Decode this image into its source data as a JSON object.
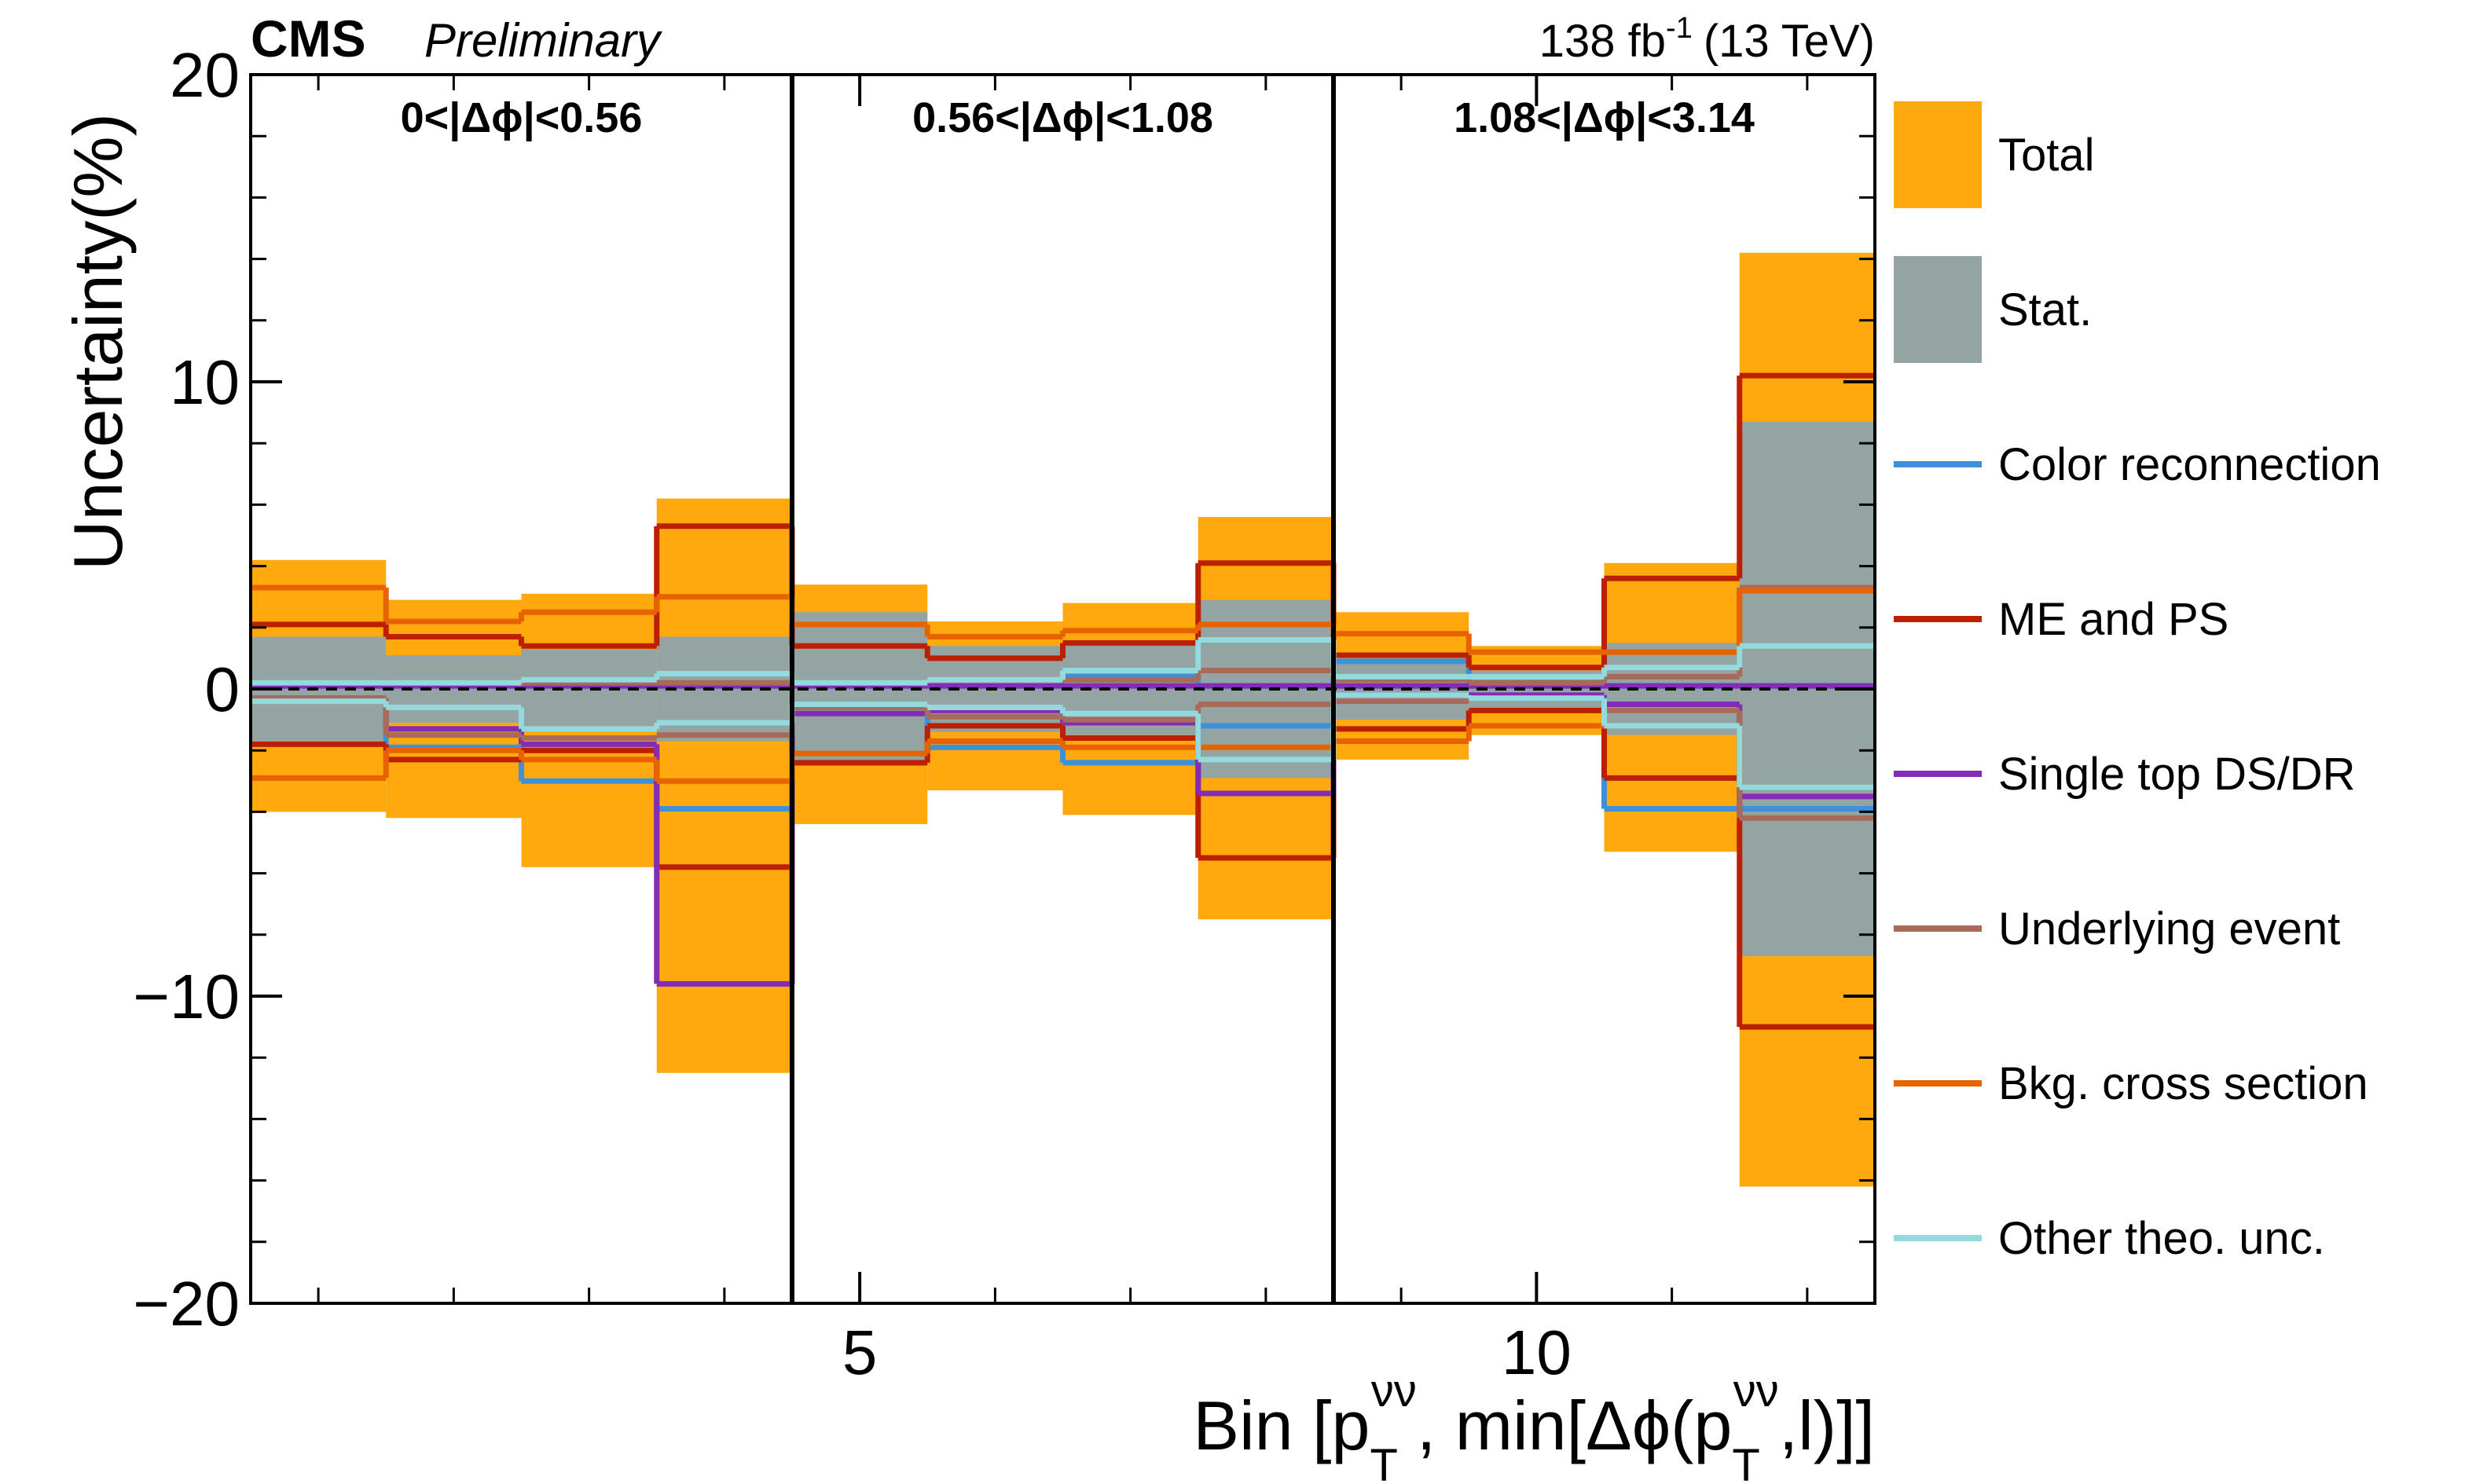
{
  "chart_data": {
    "type": "step",
    "experiment": "CMS",
    "status": "Preliminary",
    "lumi": {
      "main": "138 fb",
      "sup": "-1",
      "energy": "(13 TeV)"
    },
    "y_label": "Uncertainty(%)",
    "x_label_parts": [
      "Bin [p",
      "T",
      "νν",
      ", min[Δϕ(p",
      "T",
      "νν",
      ",l)]]"
    ],
    "xlim": [
      0.5,
      12.5
    ],
    "xticks": [
      5,
      10
    ],
    "xminorticks": [
      1,
      2,
      3,
      4,
      5,
      6,
      7,
      8,
      9,
      10,
      11,
      12
    ],
    "ylim": [
      -20,
      20
    ],
    "yticks": [
      {
        "value": -20,
        "label": "−20"
      },
      {
        "value": -10,
        "label": "−10"
      },
      0,
      10,
      20
    ],
    "yminorticks": [
      -18,
      -16,
      -14,
      -12,
      -8,
      -6,
      -4,
      -2,
      2,
      4,
      6,
      8,
      12,
      14,
      16,
      18
    ],
    "hline": 0,
    "dividers": [
      4.5,
      8.5
    ],
    "regions": [
      {
        "label": "0<|Δϕ|<0.56",
        "range": [
          0.5,
          4.5
        ]
      },
      {
        "label": "0.56<|Δϕ|<1.08",
        "range": [
          4.5,
          8.5
        ]
      },
      {
        "label": "1.08<|Δϕ|<3.14",
        "range": [
          8.5,
          12.5
        ]
      }
    ],
    "bins": [
      0.5,
      1.5,
      2.5,
      3.5,
      4.5,
      5.5,
      6.5,
      7.5,
      8.5,
      9.5,
      10.5,
      11.5,
      12.5
    ],
    "bands": [
      {
        "name": "Total",
        "color": "#ffa90e",
        "up": [
          4.2,
          2.9,
          3.1,
          6.2,
          3.4,
          2.2,
          2.8,
          5.6,
          2.5,
          1.4,
          4.1,
          14.2
        ],
        "down": [
          -4.0,
          -4.2,
          -5.8,
          -12.5,
          -4.4,
          -3.3,
          -4.1,
          -7.5,
          -2.3,
          -1.5,
          -5.3,
          -16.2
        ]
      },
      {
        "name": "Stat.",
        "color": "#94a4a2",
        "up": [
          1.7,
          1.1,
          1.3,
          1.7,
          2.5,
          1.4,
          1.5,
          2.9,
          1.0,
          0.6,
          1.5,
          8.7
        ],
        "down": [
          -1.7,
          -1.1,
          -1.3,
          -1.7,
          -2.5,
          -1.4,
          -1.5,
          -2.9,
          -1.0,
          -0.6,
          -1.5,
          -8.7
        ]
      }
    ],
    "series": [
      {
        "name": "Color reconnection",
        "color": "#3f90da",
        "up": [
          0.1,
          0.1,
          0.1,
          0.1,
          0.1,
          0.1,
          0.4,
          0.1,
          0.9,
          0.1,
          0.1,
          0.1
        ],
        "down": [
          -0.3,
          -1.9,
          -3.0,
          -3.9,
          -0.5,
          -1.9,
          -2.4,
          -1.2,
          -0.2,
          -0.3,
          -3.9,
          -3.9
        ]
      },
      {
        "name": "ME and PS",
        "color": "#bd1f01",
        "up": [
          2.1,
          1.7,
          1.4,
          5.3,
          1.4,
          1.0,
          1.5,
          4.1,
          1.1,
          0.7,
          3.6,
          10.2
        ],
        "down": [
          -1.8,
          -2.3,
          -2.0,
          -5.8,
          -2.4,
          -1.2,
          -1.6,
          -5.5,
          -1.3,
          -0.7,
          -2.9,
          -11.0
        ]
      },
      {
        "name": "Single top DS/DR",
        "color": "#832db6",
        "up": [
          0.1,
          0.1,
          0.1,
          0.1,
          0.1,
          0.1,
          0.1,
          0.1,
          0.1,
          0.1,
          0.1,
          0.1
        ],
        "down": [
          -0.3,
          -1.3,
          -1.8,
          -9.6,
          -0.8,
          -0.7,
          -1.1,
          -3.4,
          -0.2,
          -0.2,
          -0.5,
          -3.5
        ]
      },
      {
        "name": "Underlying event",
        "color": "#a96b59",
        "up": [
          0.2,
          0.2,
          0.2,
          0.2,
          0.2,
          0.3,
          0.3,
          0.6,
          0.3,
          0.2,
          0.4,
          3.3
        ],
        "down": [
          -0.3,
          -1.5,
          -1.6,
          -1.5,
          -0.6,
          -0.9,
          -1.0,
          -0.5,
          -0.4,
          -0.3,
          -0.7,
          -4.2
        ]
      },
      {
        "name": "Bkg. cross section",
        "color": "#e76300",
        "up": [
          3.3,
          2.2,
          2.5,
          3.0,
          2.1,
          1.7,
          1.9,
          2.1,
          1.8,
          1.2,
          1.2,
          3.2
        ],
        "down": [
          -2.9,
          -2.0,
          -2.3,
          -3.0,
          -2.1,
          -1.7,
          -1.9,
          -1.9,
          -1.7,
          -1.2,
          -1.2,
          -3.2
        ]
      },
      {
        "name": "Other theo. unc.",
        "color": "#92dadd",
        "up": [
          0.2,
          0.2,
          0.3,
          0.5,
          0.2,
          0.3,
          0.6,
          1.6,
          0.4,
          0.4,
          0.7,
          1.4
        ],
        "down": [
          -0.4,
          -0.6,
          -1.3,
          -1.1,
          -0.5,
          -0.6,
          -0.8,
          -2.3,
          -0.2,
          -0.3,
          -1.2,
          -3.2
        ]
      }
    ]
  }
}
